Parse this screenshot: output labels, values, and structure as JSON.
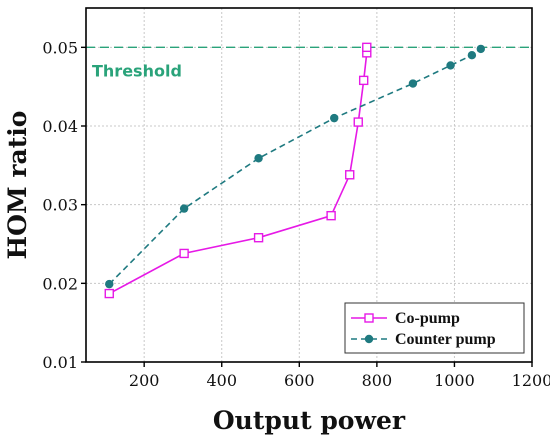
{
  "chart_data": {
    "type": "line",
    "xlabel": "Output power",
    "ylabel": "HOM ratio",
    "xlim": [
      50,
      1200
    ],
    "ylim": [
      0.01,
      0.055
    ],
    "xticks": [
      200,
      400,
      600,
      800,
      1000,
      1200
    ],
    "yticks": [
      0.01,
      0.02,
      0.03,
      0.04,
      0.05
    ],
    "ytick_labels": [
      "0.01",
      "0.02",
      "0.03",
      "0.04",
      "0.05"
    ],
    "grid": "dotted",
    "legend_position": "bottom-right",
    "series": [
      {
        "name": "Co-pump",
        "color": "#e619e6",
        "line_style": "solid",
        "marker": "open-square",
        "x": [
          110,
          303,
          495,
          682,
          730,
          752,
          766,
          774,
          774
        ],
        "y": [
          0.0187,
          0.0238,
          0.0258,
          0.0286,
          0.0338,
          0.0405,
          0.0458,
          0.0493,
          0.05
        ]
      },
      {
        "name": "Counter pump",
        "color": "#1f7a80",
        "line_style": "dashed",
        "marker": "filled-circle",
        "x": [
          110,
          303,
          495,
          690,
          893,
          990,
          1045,
          1068
        ],
        "y": [
          0.0199,
          0.0295,
          0.0359,
          0.041,
          0.0454,
          0.0477,
          0.049,
          0.0498
        ]
      }
    ],
    "threshold": {
      "value": 0.05,
      "label": "Threshold",
      "color": "#2aa37a",
      "line_style": "dashed"
    }
  }
}
